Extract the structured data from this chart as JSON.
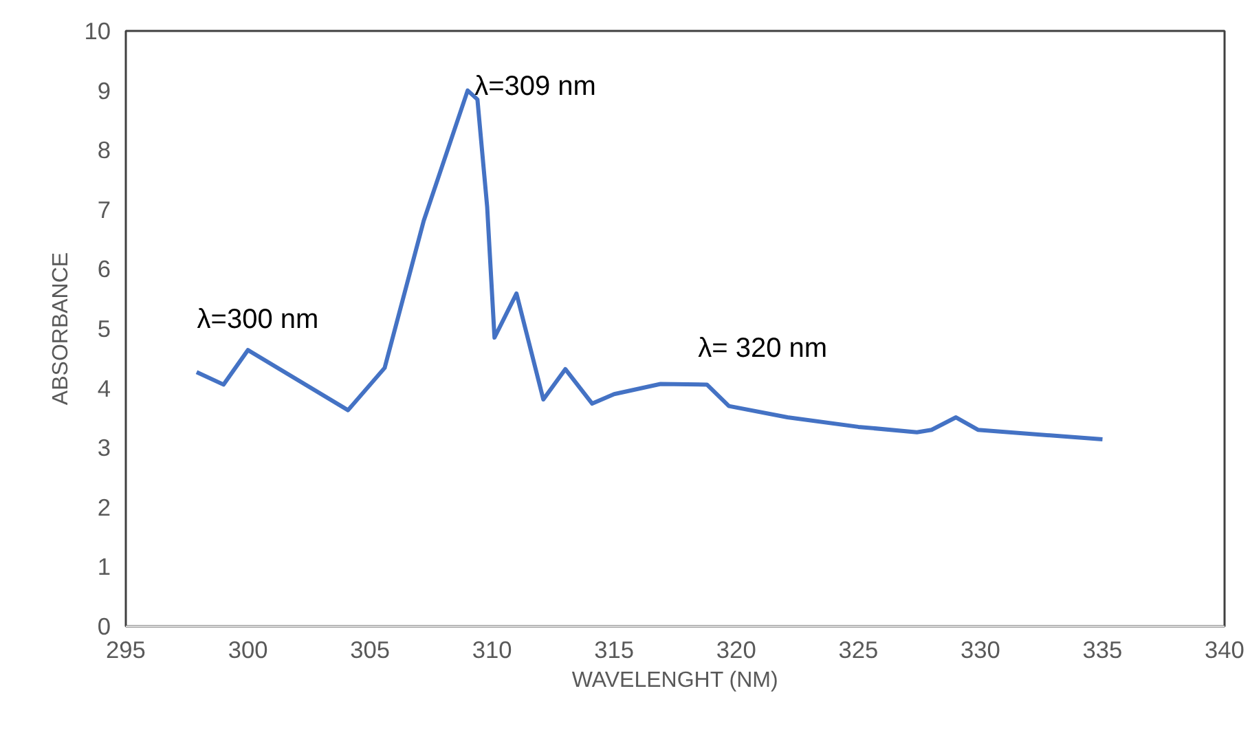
{
  "chart_data": {
    "type": "line",
    "xlabel": "WAVELENGHT (NM)",
    "ylabel": "ABSORBANCE",
    "x": [
      297.9,
      299.0,
      300.0,
      304.1,
      305.6,
      307.2,
      309.0,
      309.4,
      309.8,
      310.1,
      311.0,
      312.1,
      313.0,
      314.1,
      315.0,
      316.9,
      318.8,
      319.7,
      322.1,
      325.0,
      327.4,
      328.0,
      329.0,
      329.9,
      335.0
    ],
    "series": [
      {
        "color": "#4472c4",
        "values": [
          4.27,
          4.06,
          4.64,
          3.63,
          4.34,
          6.81,
          9.0,
          8.85,
          7.04,
          4.85,
          5.59,
          3.81,
          4.32,
          3.74,
          3.9,
          4.07,
          4.06,
          3.7,
          3.51,
          3.35,
          3.26,
          3.3,
          3.51,
          3.3,
          3.14
        ]
      }
    ],
    "xlim": [
      295,
      340
    ],
    "xticks": [
      295,
      300,
      305,
      310,
      315,
      320,
      325,
      330,
      335,
      340
    ],
    "ylim": [
      0,
      10
    ],
    "yticks": [
      0,
      1,
      2,
      3,
      4,
      5,
      6,
      7,
      8,
      9,
      10
    ],
    "annotations": [
      {
        "text": "λ=300 nm",
        "x": 300.0,
        "y": 4.64
      },
      {
        "text": "λ=309 nm",
        "x": 309.0,
        "y": 9.0
      },
      {
        "text": "λ= 320 nm",
        "x": 319.0,
        "y": 4.06
      }
    ],
    "grid": false,
    "marker": "none",
    "line_style": "solid"
  }
}
